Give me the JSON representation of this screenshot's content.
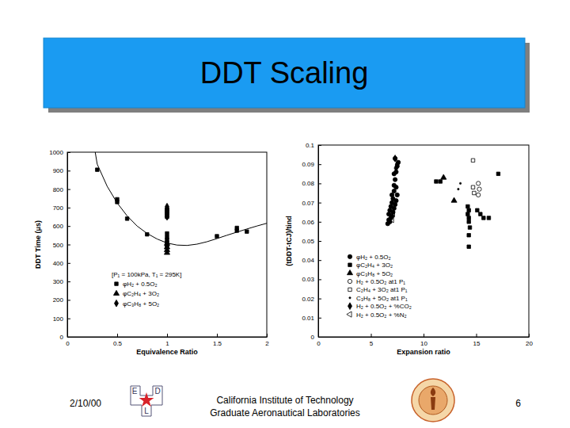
{
  "header": {
    "title": "DDT Scaling"
  },
  "footer": {
    "date": "2/10/00",
    "institution": [
      "California Institute of Technology",
      "Graduate Aeronautical Laboratories"
    ],
    "page": 6,
    "logo_letters": [
      "E",
      "D",
      "L"
    ]
  },
  "chart_data": [
    {
      "type": "scatter",
      "xlabel": "Equivalence Ratio",
      "ylabel": "DDT Time (μs)",
      "xlim": [
        0,
        2
      ],
      "ylim": [
        0,
        1000
      ],
      "xticks": [
        0,
        0.5,
        1,
        1.5,
        2
      ],
      "yticks": [
        0,
        100,
        200,
        300,
        400,
        500,
        600,
        700,
        800,
        900,
        1000
      ],
      "legend": "lower left",
      "annotations": [
        "[P₁ = 100kPa, T₁ = 295K]"
      ],
      "series": [
        {
          "name": "φH₂ + 0.5O₂",
          "color": "#000000",
          "marker": "square",
          "x": [
            0.3,
            0.5,
            0.5,
            0.6,
            0.8,
            1,
            1,
            1,
            1,
            1,
            1,
            1,
            1,
            1,
            1,
            1,
            1.5,
            1.7,
            1.7,
            1.8
          ],
          "values": [
            905,
            745,
            730,
            640,
            555,
            690,
            680,
            670,
            660,
            650,
            560,
            540,
            525,
            510,
            500,
            490,
            545,
            590,
            575,
            570
          ]
        },
        {
          "name": "φC₂H₄ + 3O₂",
          "color": "#000000",
          "marker": "triangle",
          "x": [
            1,
            1,
            1,
            1
          ],
          "values": [
            505,
            485,
            470,
            455
          ]
        },
        {
          "name": "φC₃H₈ + 5O₂",
          "color": "#000000",
          "marker": "diamond",
          "x": [
            1,
            1,
            1,
            1,
            1,
            1
          ],
          "values": [
            705,
            695,
            685,
            675,
            665,
            650
          ]
        },
        {
          "type": "line",
          "color": "#000000",
          "line_style": "solid",
          "x": [
            0.28,
            0.3,
            0.4,
            0.5,
            0.6,
            0.7,
            0.8,
            0.9,
            1.0,
            1.1,
            1.2,
            1.3,
            1.4,
            1.5,
            1.6,
            1.7,
            1.8,
            1.9,
            2.0
          ],
          "values": [
            1000,
            935,
            815,
            725,
            655,
            600,
            560,
            530,
            508,
            497,
            495,
            502,
            515,
            532,
            550,
            567,
            584,
            600,
            615
          ]
        }
      ]
    },
    {
      "type": "scatter",
      "xlabel": "Expansion ratio",
      "ylabel": "(tDDT-tCJ)/tind",
      "xlim": [
        0,
        20
      ],
      "ylim": [
        0,
        0.1
      ],
      "xticks": [
        0,
        5,
        10,
        15,
        20
      ],
      "yticks": [
        0,
        0.01,
        0.02,
        0.03,
        0.04,
        0.05,
        0.06,
        0.07,
        0.08,
        0.09,
        0.1
      ],
      "legend": "lower left",
      "series": [
        {
          "name": "φH₂ + 0.5O₂",
          "color": "#000000",
          "marker": "circle",
          "x": [
            6.6,
            6.7,
            6.7,
            6.8,
            6.8,
            6.9,
            6.9,
            7.0,
            7.0,
            7.0,
            7.1,
            7.1,
            7.2,
            7.2,
            7.2,
            7.3,
            7.3,
            7.4,
            7.4,
            7.5,
            7.5,
            7.6,
            7.3,
            7.2,
            7.4
          ],
          "values": [
            0.059,
            0.061,
            0.064,
            0.06,
            0.066,
            0.062,
            0.068,
            0.063,
            0.07,
            0.074,
            0.065,
            0.072,
            0.067,
            0.076,
            0.079,
            0.069,
            0.082,
            0.071,
            0.086,
            0.074,
            0.089,
            0.091,
            0.093,
            0.085,
            0.078
          ]
        },
        {
          "name": "φC₂H₄ + 3O₂",
          "color": "#000000",
          "marker": "square",
          "x": [
            11.2,
            11.6,
            14.2,
            14.3,
            14.2,
            14.3,
            14.3,
            14.4,
            14.3,
            14.3,
            15.1,
            15.4,
            15.7,
            16.2,
            17.1
          ],
          "values": [
            0.081,
            0.081,
            0.068,
            0.066,
            0.064,
            0.062,
            0.06,
            0.057,
            0.053,
            0.047,
            0.066,
            0.064,
            0.062,
            0.062,
            0.085
          ]
        },
        {
          "name": "φC₃H₈ + 5O₂",
          "color": "#000000",
          "marker": "triangle",
          "x": [
            11.9,
            12.9
          ],
          "values": [
            0.083,
            0.071
          ]
        },
        {
          "name": "H₂ + 0.5O₂ at1 P₁",
          "color": "#000000",
          "marker": "circle-open",
          "x": [
            15.2,
            15.3,
            15.2
          ],
          "values": [
            0.074,
            0.077,
            0.08
          ]
        },
        {
          "name": "C₂H₄ + 3O₂ at1 P₁",
          "color": "#000000",
          "marker": "square-open",
          "x": [
            14.7,
            14.7,
            14.8
          ],
          "values": [
            0.092,
            0.078,
            0.075
          ]
        },
        {
          "name": "C₃H₈ + 5O₂ at1 P₁",
          "color": "#000000",
          "marker": "dot",
          "x": [
            13.5,
            13.3
          ],
          "values": [
            0.08,
            0.077
          ]
        },
        {
          "name": "H₂ + 0.5O₂ + %CO₂",
          "color": "#000000",
          "marker": "diamond",
          "x": [
            7.4,
            7.5,
            7.3
          ],
          "values": [
            0.088,
            0.09,
            0.093
          ]
        },
        {
          "name": "H₂ + 0.5O₂ + %N₂",
          "color": "#000000",
          "marker": "triangle-left-open",
          "x": [
            7.0,
            7.1
          ],
          "values": [
            0.061,
            0.064
          ]
        }
      ]
    }
  ]
}
